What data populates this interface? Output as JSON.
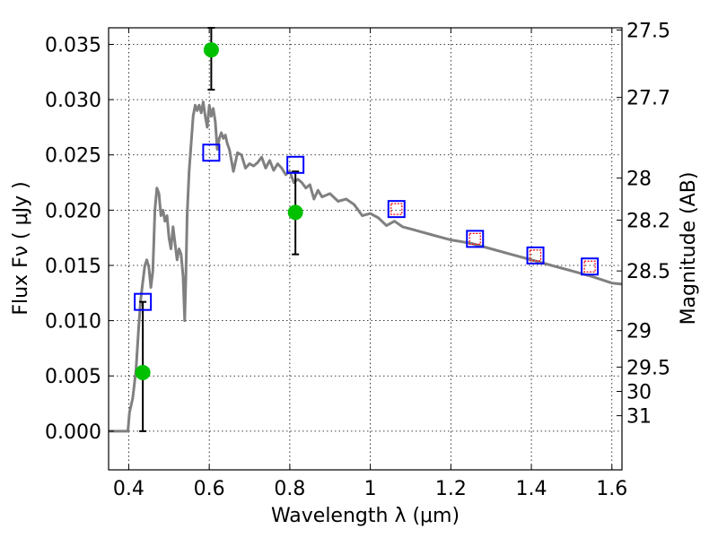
{
  "chart_data": {
    "type": "scatter",
    "xlabel": "Wavelength  λ (μm)",
    "ylabel": "Flux  Fν  ( μJy )",
    "y2label": "Magnitude (AB)",
    "xlim": [
      0.35,
      1.625
    ],
    "ylim": [
      -0.0035,
      0.0365
    ],
    "x_ticks": [
      0.4,
      0.6,
      0.8,
      1.0,
      1.2,
      1.4,
      1.6
    ],
    "x_tick_labels": [
      "0.4",
      "0.6",
      "0.8",
      "1",
      "1.2",
      "1.4",
      "1.6"
    ],
    "y_ticks": [
      0.0,
      0.005,
      0.01,
      0.015,
      0.02,
      0.025,
      0.03,
      0.035
    ],
    "y_tick_labels": [
      "0.000",
      "0.005",
      "0.010",
      "0.015",
      "0.020",
      "0.025",
      "0.030",
      "0.035"
    ],
    "mag_ticks": [
      {
        "label": "27.5",
        "flux": 0.0363
      },
      {
        "label": "27.7",
        "flux": 0.0302
      },
      {
        "label": "28",
        "flux": 0.0229
      },
      {
        "label": "28.2",
        "flux": 0.0191
      },
      {
        "label": "28.5",
        "flux": 0.0145
      },
      {
        "label": "29",
        "flux": 0.0091
      },
      {
        "label": "29.5",
        "flux": 0.0058
      },
      {
        "label": "30",
        "flux": 0.0036
      },
      {
        "label": "31",
        "flux": 0.0014
      }
    ],
    "grid": true,
    "colors": {
      "model": "#808080",
      "observed": "#00c000",
      "model_photometry": "#0000ff",
      "inner_square": "#ff0000"
    },
    "model_spectrum": {
      "x": [
        0.35,
        0.398,
        0.402,
        0.41,
        0.418,
        0.425,
        0.43,
        0.435,
        0.44,
        0.445,
        0.45,
        0.455,
        0.46,
        0.465,
        0.47,
        0.475,
        0.48,
        0.485,
        0.49,
        0.495,
        0.5,
        0.505,
        0.51,
        0.515,
        0.52,
        0.525,
        0.53,
        0.535,
        0.537,
        0.539,
        0.542,
        0.545,
        0.55,
        0.56,
        0.565,
        0.57,
        0.575,
        0.58,
        0.585,
        0.59,
        0.595,
        0.6,
        0.605,
        0.61,
        0.615,
        0.62,
        0.625,
        0.63,
        0.635,
        0.64,
        0.645,
        0.65,
        0.66,
        0.67,
        0.68,
        0.69,
        0.7,
        0.71,
        0.72,
        0.73,
        0.74,
        0.75,
        0.76,
        0.77,
        0.78,
        0.79,
        0.8,
        0.81,
        0.82,
        0.83,
        0.84,
        0.85,
        0.86,
        0.87,
        0.88,
        0.9,
        0.92,
        0.94,
        0.96,
        0.98,
        1.0,
        1.02,
        1.04,
        1.06,
        1.08,
        1.1,
        1.12,
        1.15,
        1.18,
        1.2,
        1.25,
        1.3,
        1.35,
        1.4,
        1.45,
        1.5,
        1.55,
        1.6,
        1.625
      ],
      "y": [
        0.0,
        0.0,
        0.0017,
        0.003,
        0.0055,
        0.0095,
        0.012,
        0.0135,
        0.015,
        0.0155,
        0.0148,
        0.013,
        0.0145,
        0.02,
        0.022,
        0.0215,
        0.0195,
        0.02,
        0.019,
        0.0195,
        0.0175,
        0.0165,
        0.0185,
        0.017,
        0.0155,
        0.0165,
        0.016,
        0.014,
        0.012,
        0.01,
        0.014,
        0.0195,
        0.0235,
        0.0285,
        0.0295,
        0.029,
        0.0295,
        0.0288,
        0.0298,
        0.0285,
        0.0275,
        0.0295,
        0.0285,
        0.0292,
        0.028,
        0.0255,
        0.0265,
        0.027,
        0.0265,
        0.0268,
        0.026,
        0.0255,
        0.0235,
        0.0252,
        0.025,
        0.0238,
        0.0242,
        0.024,
        0.0243,
        0.0248,
        0.0238,
        0.0245,
        0.0236,
        0.0242,
        0.0238,
        0.0232,
        0.0235,
        0.0225,
        0.0228,
        0.0225,
        0.022,
        0.0223,
        0.021,
        0.0218,
        0.0212,
        0.0215,
        0.0208,
        0.021,
        0.0205,
        0.0195,
        0.0197,
        0.0193,
        0.0186,
        0.019,
        0.0185,
        0.0183,
        0.0181,
        0.0178,
        0.0175,
        0.0173,
        0.017,
        0.0165,
        0.016,
        0.0155,
        0.015,
        0.0145,
        0.014,
        0.0134,
        0.0133
      ]
    },
    "observed_photometry": [
      {
        "x": 0.435,
        "y": 0.0053,
        "yerr_low": 0.0053,
        "yerr_high": 0.0064
      },
      {
        "x": 0.605,
        "y": 0.0345,
        "yerr_low": 0.0036,
        "yerr_high": 0.002
      },
      {
        "x": 0.814,
        "y": 0.0198,
        "yerr_low": 0.0038,
        "yerr_high": 0.0037
      }
    ],
    "model_photometry": [
      {
        "x": 0.435,
        "y": 0.0117,
        "inner": false
      },
      {
        "x": 0.605,
        "y": 0.0252,
        "inner": false
      },
      {
        "x": 0.814,
        "y": 0.0241,
        "inner": false
      },
      {
        "x": 1.065,
        "y": 0.0201,
        "inner": true
      },
      {
        "x": 1.26,
        "y": 0.0174,
        "inner": true
      },
      {
        "x": 1.41,
        "y": 0.0159,
        "inner": true
      },
      {
        "x": 1.545,
        "y": 0.0149,
        "inner": true
      }
    ]
  }
}
